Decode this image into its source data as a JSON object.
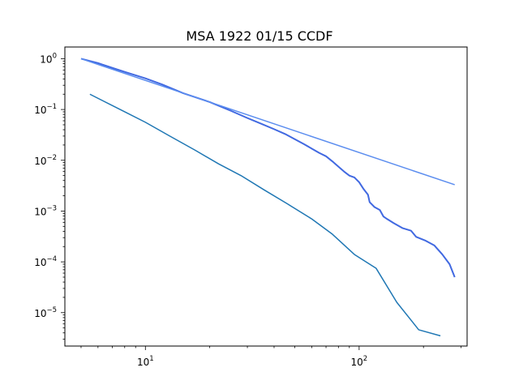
{
  "chart_data": {
    "type": "line",
    "title": "MSA 1922 01/15 CCDF",
    "xlabel": "",
    "ylabel": "",
    "xscale": "log",
    "yscale": "log",
    "xlim": [
      4.2,
      320
    ],
    "ylim": [
      2.2e-06,
      1.7
    ],
    "grid": false,
    "legend": "none",
    "x_major_ticks": [
      {
        "value": 10,
        "base": "10",
        "exp": "1"
      },
      {
        "value": 100,
        "base": "10",
        "exp": "2"
      }
    ],
    "y_major_ticks": [
      {
        "value": 1,
        "base": "10",
        "exp": "0"
      },
      {
        "value": 0.1,
        "base": "10",
        "exp": "−1"
      },
      {
        "value": 0.01,
        "base": "10",
        "exp": "−2"
      },
      {
        "value": 0.001,
        "base": "10",
        "exp": "−3"
      },
      {
        "value": 0.0001,
        "base": "10",
        "exp": "−4"
      },
      {
        "value": 1e-05,
        "base": "10",
        "exp": "−5"
      }
    ],
    "series": [
      {
        "color": "#4169e1",
        "width": 2,
        "points": [
          [
            5,
            1.0
          ],
          [
            6,
            0.82
          ],
          [
            7,
            0.66
          ],
          [
            8,
            0.55
          ],
          [
            10,
            0.41
          ],
          [
            12,
            0.31
          ],
          [
            15,
            0.21
          ],
          [
            20,
            0.14
          ],
          [
            25,
            0.095
          ],
          [
            30,
            0.068
          ],
          [
            35,
            0.052
          ],
          [
            40,
            0.041
          ],
          [
            45,
            0.033
          ],
          [
            50,
            0.026
          ],
          [
            55,
            0.021
          ],
          [
            60,
            0.017
          ],
          [
            65,
            0.014
          ],
          [
            70,
            0.012
          ],
          [
            75,
            0.0095
          ],
          [
            80,
            0.0075
          ],
          [
            85,
            0.006
          ],
          [
            90,
            0.005
          ],
          [
            95,
            0.0046
          ],
          [
            100,
            0.0037
          ],
          [
            105,
            0.0027
          ],
          [
            110,
            0.0021
          ],
          [
            112,
            0.0015
          ],
          [
            118,
            0.0012
          ],
          [
            125,
            0.00105
          ],
          [
            130,
            0.00078
          ],
          [
            135,
            0.0007
          ],
          [
            145,
            0.00058
          ],
          [
            160,
            0.00046
          ],
          [
            175,
            0.00041
          ],
          [
            185,
            0.00031
          ],
          [
            205,
            0.00026
          ],
          [
            225,
            0.00021
          ],
          [
            245,
            0.00014
          ],
          [
            265,
            9e-05
          ],
          [
            280,
            5e-05
          ]
        ]
      },
      {
        "color": "#5b8def",
        "width": 1.5,
        "points": [
          [
            5,
            1.0
          ],
          [
            280,
            0.0033
          ]
        ]
      },
      {
        "color": "#1f77b4",
        "width": 1.5,
        "points": [
          [
            5.5,
            0.2
          ],
          [
            8,
            0.09
          ],
          [
            10,
            0.056
          ],
          [
            13,
            0.03
          ],
          [
            17,
            0.016
          ],
          [
            22,
            0.0085
          ],
          [
            28,
            0.005
          ],
          [
            36,
            0.0026
          ],
          [
            46,
            0.0014
          ],
          [
            60,
            0.0007
          ],
          [
            75,
            0.00035
          ],
          [
            95,
            0.00014
          ],
          [
            120,
            7.5e-05
          ],
          [
            150,
            1.6e-05
          ],
          [
            190,
            4.6e-06
          ],
          [
            240,
            3.5e-06
          ]
        ]
      }
    ]
  }
}
